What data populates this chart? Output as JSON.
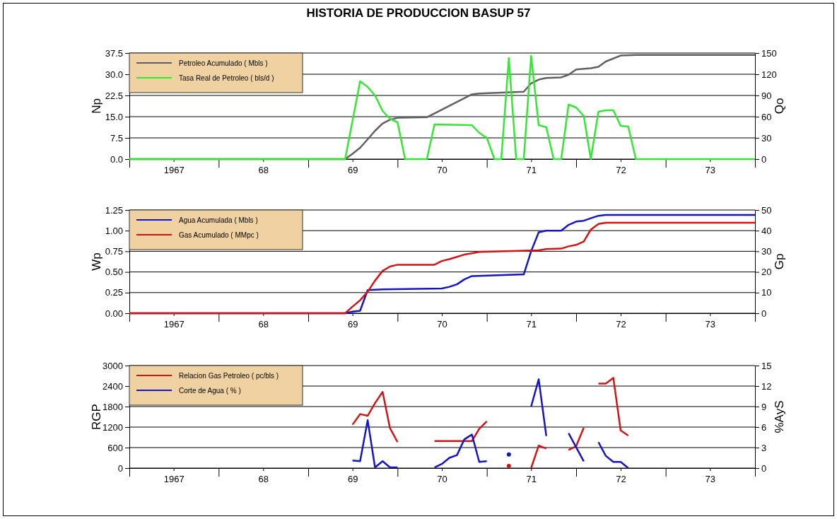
{
  "chart_data": [
    {
      "type": "line",
      "title": "HISTORIA DE PRODUCCION   BASUP   57",
      "ylabel": "Np",
      "y2label": "Qo",
      "grid": "y",
      "legend": "top left",
      "xlim": [
        "1967-01-01",
        "1974-01-01"
      ],
      "xticks": [
        {
          "value": "1967-01-01",
          "label": null
        },
        {
          "value": "1967-07-01",
          "label": "1967"
        },
        {
          "value": "1968-01-01",
          "label": null
        },
        {
          "value": "1968-07-01",
          "label": "68"
        },
        {
          "value": "1969-01-01",
          "label": null
        },
        {
          "value": "1969-07-01",
          "label": "69"
        },
        {
          "value": "1970-01-01",
          "label": null
        },
        {
          "value": "1970-07-01",
          "label": "70"
        },
        {
          "value": "1971-01-01",
          "label": null
        },
        {
          "value": "1971-07-01",
          "label": "71"
        },
        {
          "value": "1972-01-01",
          "label": null
        },
        {
          "value": "1972-07-01",
          "label": "72"
        },
        {
          "value": "1973-01-01",
          "label": null
        },
        {
          "value": "1973-07-01",
          "label": "73"
        },
        {
          "value": "1974-01-01",
          "label": null
        }
      ],
      "ylim": [
        0,
        37.5
      ],
      "yticks": [
        {
          "value": 0,
          "label": "0.0"
        },
        {
          "value": 7.5,
          "label": "7.5"
        },
        {
          "value": 15,
          "label": "15.0"
        },
        {
          "value": 22.5,
          "label": "22.5"
        },
        {
          "value": 30,
          "label": "30.0"
        },
        {
          "value": 37.5,
          "label": "37.5"
        }
      ],
      "y2lim": [
        0,
        150
      ],
      "y2ticks": [
        0,
        30,
        60,
        90,
        120,
        150
      ],
      "series": [
        {
          "name": "Petroleo Acumulado ( Mbls )",
          "color": "#606060",
          "x": [
            "1967-01",
            "1969-06",
            "1969-07",
            "1969-08",
            "1969-09",
            "1969-10",
            "1969-11",
            "1969-12",
            "1970-01",
            "1970-05",
            "1970-11",
            "1970-12",
            "1971-06",
            "1971-07",
            "1971-08",
            "1971-09",
            "1971-11",
            "1971-12",
            "1972-01",
            "1972-03",
            "1972-04",
            "1972-05",
            "1972-07",
            "1972-09",
            "1974-01"
          ],
          "values": [
            0,
            0,
            1.9,
            4.0,
            7.0,
            10.0,
            12.6,
            13.9,
            14.6,
            14.8,
            22.9,
            23.2,
            23.8,
            26.8,
            28.1,
            28.7,
            28.9,
            29.8,
            31.7,
            32.1,
            32.6,
            34.5,
            36.6,
            36.8,
            36.8
          ]
        },
        {
          "name": "Tasa Real de Petroleo ( bls/d )",
          "color": "#33e833",
          "axis": "y2",
          "x": [
            "1967-01",
            "1969-06",
            "1969-08",
            "1969-09",
            "1969-10",
            "1969-11",
            "1969-12",
            "1970-01",
            "1970-02",
            "1970-05",
            "1970-06",
            "1970-11",
            "1970-12",
            "1971-01",
            "1971-02",
            "1971-03",
            "1971-04",
            "1971-05",
            "1971-06",
            "1971-07",
            "1971-08",
            "1971-09",
            "1971-10",
            "1971-11",
            "1971-12",
            "1972-01",
            "1972-02",
            "1972-03",
            "1972-04",
            "1972-05",
            "1972-06",
            "1972-07",
            "1972-08",
            "1972-09",
            "1974-01"
          ],
          "values": [
            0,
            0,
            110,
            102,
            90,
            68,
            57,
            52,
            0,
            0,
            49,
            48,
            37,
            30,
            0,
            0,
            143,
            0,
            0,
            146,
            48,
            45,
            0,
            0,
            77,
            73,
            61,
            0,
            67,
            69,
            69,
            47,
            46,
            0,
            0
          ]
        }
      ]
    },
    {
      "type": "line",
      "ylabel": "Wp",
      "y2label": "Gp",
      "grid": "y",
      "legend": "top left",
      "xlim": [
        "1967-01-01",
        "1974-01-01"
      ],
      "xticks": [
        {
          "value": "1967-01-01",
          "label": null
        },
        {
          "value": "1967-07-01",
          "label": "1967"
        },
        {
          "value": "1968-01-01",
          "label": null
        },
        {
          "value": "1968-07-01",
          "label": "68"
        },
        {
          "value": "1969-01-01",
          "label": null
        },
        {
          "value": "1969-07-01",
          "label": "69"
        },
        {
          "value": "1970-01-01",
          "label": null
        },
        {
          "value": "1970-07-01",
          "label": "70"
        },
        {
          "value": "1971-01-01",
          "label": null
        },
        {
          "value": "1971-07-01",
          "label": "71"
        },
        {
          "value": "1972-01-01",
          "label": null
        },
        {
          "value": "1972-07-01",
          "label": "72"
        },
        {
          "value": "1973-01-01",
          "label": null
        },
        {
          "value": "1973-07-01",
          "label": "73"
        },
        {
          "value": "1974-01-01",
          "label": null
        }
      ],
      "ylim": [
        0,
        1.25
      ],
      "yticks": [
        {
          "value": 0,
          "label": "0.00"
        },
        {
          "value": 0.25,
          "label": "0.25"
        },
        {
          "value": 0.5,
          "label": "0.50"
        },
        {
          "value": 0.75,
          "label": "0.75"
        },
        {
          "value": 1,
          "label": "1.00"
        },
        {
          "value": 1.25,
          "label": "1.25"
        }
      ],
      "y2lim": [
        0,
        50
      ],
      "y2ticks": [
        0,
        10,
        20,
        30,
        40,
        50
      ],
      "series": [
        {
          "name": "Agua Acumulada ( Mbls )",
          "color": "#1414c8",
          "x": [
            "1967-01",
            "1969-06",
            "1969-07",
            "1969-08",
            "1969-09",
            "1969-11",
            "1970-07",
            "1970-08",
            "1970-09",
            "1970-10",
            "1970-11",
            "1971-06",
            "1971-07",
            "1971-08",
            "1971-09",
            "1971-11",
            "1971-12",
            "1972-01",
            "1972-02",
            "1972-03",
            "1972-04",
            "1972-05",
            "1974-01"
          ],
          "values": [
            0,
            0,
            0.02,
            0.03,
            0.28,
            0.29,
            0.3,
            0.32,
            0.35,
            0.41,
            0.45,
            0.47,
            0.75,
            0.98,
            1.0,
            1.0,
            1.07,
            1.11,
            1.12,
            1.15,
            1.18,
            1.19,
            1.19
          ]
        },
        {
          "name": "Gas Acumulado ( MMpc )",
          "color": "#d41414",
          "axis": "y2",
          "x": [
            "1967-01",
            "1969-06",
            "1969-07",
            "1969-08",
            "1969-09",
            "1969-10",
            "1969-11",
            "1969-12",
            "1970-01",
            "1970-06",
            "1970-07",
            "1970-08",
            "1970-09",
            "1970-10",
            "1970-11",
            "1970-12",
            "1971-08",
            "1971-09",
            "1971-11",
            "1971-12",
            "1972-01",
            "1972-02",
            "1972-03",
            "1972-04",
            "1972-05",
            "1974-01"
          ],
          "values": [
            0,
            0,
            3.2,
            6.3,
            10.4,
            15.8,
            20.5,
            22.6,
            23.5,
            23.5,
            25.3,
            26.2,
            27.3,
            28.4,
            29.0,
            29.7,
            30.5,
            31.1,
            31.3,
            32.4,
            33.1,
            34.7,
            40.5,
            43.2,
            43.8,
            43.8
          ]
        }
      ]
    },
    {
      "type": "line",
      "ylabel": "RGP",
      "y2label": "%AyS",
      "grid": "y",
      "legend": "top left",
      "xlim": [
        "1967-01-01",
        "1974-01-01"
      ],
      "xticks": [
        {
          "value": "1967-01-01",
          "label": null
        },
        {
          "value": "1967-07-01",
          "label": "1967"
        },
        {
          "value": "1968-01-01",
          "label": null
        },
        {
          "value": "1968-07-01",
          "label": "68"
        },
        {
          "value": "1969-01-01",
          "label": null
        },
        {
          "value": "1969-07-01",
          "label": "69"
        },
        {
          "value": "1970-01-01",
          "label": null
        },
        {
          "value": "1970-07-01",
          "label": "70"
        },
        {
          "value": "1971-01-01",
          "label": null
        },
        {
          "value": "1971-07-01",
          "label": "71"
        },
        {
          "value": "1972-01-01",
          "label": null
        },
        {
          "value": "1972-07-01",
          "label": "72"
        },
        {
          "value": "1973-01-01",
          "label": null
        },
        {
          "value": "1973-07-01",
          "label": "73"
        },
        {
          "value": "1974-01-01",
          "label": null
        }
      ],
      "ylim": [
        0,
        3000
      ],
      "yticks": [
        0,
        600,
        1200,
        1800,
        2400,
        3000
      ],
      "y2lim": [
        0,
        15
      ],
      "y2ticks": [
        0,
        3,
        6,
        9,
        12,
        15
      ],
      "series": [
        {
          "name": "Relacion Gas Petroleo ( pc/bls )",
          "color": "#d41414",
          "x": [
            "1969-07",
            "1969-08",
            "1969-09",
            "1969-10",
            "1969-11",
            "1969-12",
            "1970-01",
            "1970-02",
            "1970-06",
            "1970-11",
            "1970-12",
            "1971-01",
            "1971-02",
            "1971-04",
            "1971-05",
            "1971-07",
            "1971-08",
            "1971-09",
            "1971-10",
            "1971-12",
            "1972-01",
            "1972-02",
            "1972-03",
            "1972-04",
            "1972-05",
            "1972-06",
            "1972-07",
            "1972-08"
          ],
          "values": [
            1270,
            1580,
            1530,
            1900,
            2230,
            1170,
            760,
            null,
            790,
            790,
            1150,
            1370,
            null,
            60,
            null,
            0,
            660,
            570,
            null,
            530,
            640,
            1180,
            null,
            2470,
            2470,
            2640,
            1100,
            950
          ]
        },
        {
          "name": "Corte de Agua ( % )",
          "color": "#1414c8",
          "axis": "y2",
          "x": [
            "1969-07",
            "1969-08",
            "1969-09",
            "1969-10",
            "1969-11",
            "1969-12",
            "1970-01",
            "1970-02",
            "1970-06",
            "1970-07",
            "1970-08",
            "1970-09",
            "1970-10",
            "1970-11",
            "1970-12",
            "1971-01",
            "1971-02",
            "1971-04",
            "1971-05",
            "1971-07",
            "1971-08",
            "1971-09",
            "1971-10",
            "1971-12",
            "1972-02",
            "1972-03",
            "1972-04",
            "1972-05",
            "1972-06",
            "1972-07",
            "1972-08"
          ],
          "values": [
            1.1,
            1.0,
            7.0,
            0.1,
            1.0,
            0.1,
            0.1,
            null,
            0.1,
            0.6,
            1.5,
            1.9,
            4.2,
            4.9,
            0.9,
            1.0,
            null,
            2.0,
            null,
            9.0,
            13.0,
            4.7,
            null,
            5.1,
            1.0,
            null,
            3.8,
            1.8,
            0.9,
            0.9,
            0
          ]
        }
      ]
    }
  ]
}
